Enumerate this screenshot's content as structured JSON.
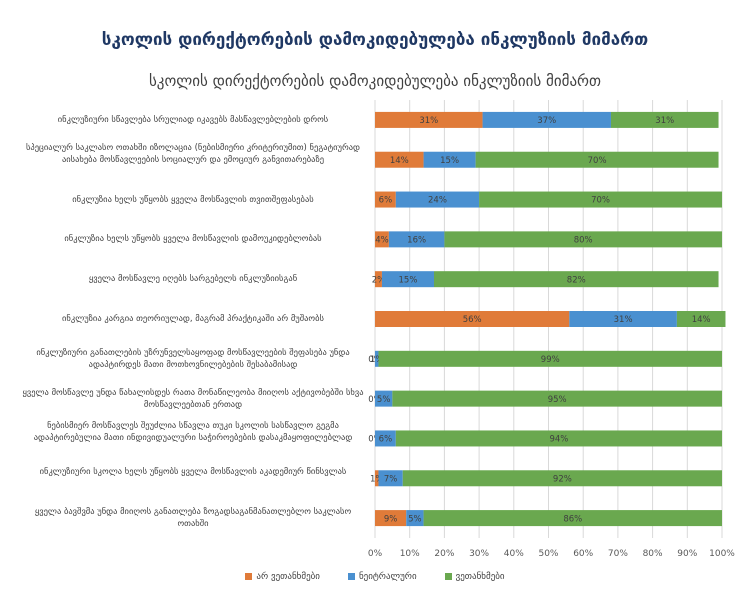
{
  "header": {
    "title": "სკოლის დირექტორების დამოკიდებულება ინკლუზიის მიმართ"
  },
  "colors": {
    "disagree": "#e07b39",
    "neutral": "#4a90d0",
    "agree": "#6aa84f"
  },
  "chart_data": {
    "type": "bar",
    "orientation": "horizontal",
    "stacked": "percent",
    "title": "სკოლის დირექტორების დამოკიდებულება ინკლუზიის მიმართ",
    "xlim": [
      0,
      100
    ],
    "x_ticks": [
      "0%",
      "10%",
      "20%",
      "30%",
      "40%",
      "50%",
      "60%",
      "70%",
      "80%",
      "90%",
      "100%"
    ],
    "grid": true,
    "legend_position": "bottom",
    "categories": [
      "ინკლუზიური სწავლება სრულიად იკავებს მასწავლებლების დროს",
      "სპეციალურ საკლასო ოთახში იზოლაცია (ნებისმიერი კრიტერიუმით) ნეგატიურად აისახება მოსწავლეების სოციალურ და ემოციურ განვითარებაზე",
      "ინკლუზია ხელს უწყობს ყველა მოსწავლის თვითშეფასებას",
      "ინკლუზია ხელს უწყობს ყველა მოსწავლის დამოუკიდებლობას",
      "ყველა მოსწავლე იღებს სარგებელს ინკლუზიისგან",
      "ინკლუზია კარგია თეორიულად, მაგრამ პრაქტიკაში არ მუშაობს",
      "ინკლუზიური განათლების უზრუნველსაყოფად მოსწავლეების შეფასება უნდა ადაპტირდეს მათი მოთხოვნილებების შესაბამისად",
      "ყველა მოსწავლე უნდა წახალისდეს რათა მონაწილეობა მიიღოს აქტივობებში სხვა მოსწავლეებთან ერთად",
      "ნებისმიერ მოსწავლეს შეუძლია სწავლა თუკი სკოლის სასწავლო გეგმა ადაპტირებულია მათი ინდივიდუალური საჭიროებების დასაკმაყოფილებლად",
      "ინკლუზიური სკოლა ხელს უწყობს ყველა მოსწავლის აკადემიურ წინსვლას",
      "ყველა ბავშვმა უნდა მიიღოს განათლება ზოგადსაგანმანათლებლო საკლასო ოთახში"
    ],
    "series": [
      {
        "name": "არ ვეთანხმები",
        "values": [
          31,
          14,
          6,
          4,
          2,
          56,
          0,
          0,
          0,
          1,
          9
        ],
        "labels": [
          "31%",
          "14%",
          "6%",
          "4%",
          "2%",
          "56%",
          "0%",
          "0%",
          "0%",
          "1%",
          "9%"
        ]
      },
      {
        "name": "ნეიტრალური",
        "values": [
          37,
          15,
          24,
          16,
          15,
          31,
          1,
          5,
          6,
          7,
          5
        ],
        "labels": [
          "37%",
          "15%",
          "24%",
          "16%",
          "15%",
          "31%",
          "1%",
          "5%",
          "6%",
          "7%",
          "5%"
        ]
      },
      {
        "name": "ვეთანხმები",
        "values": [
          31,
          70,
          70,
          80,
          82,
          14,
          99,
          95,
          94,
          92,
          86
        ],
        "labels": [
          "31%",
          "70%",
          "70%",
          "80%",
          "82%",
          "14%",
          "99%",
          "95%",
          "94%",
          "92%",
          "86%"
        ]
      }
    ]
  }
}
